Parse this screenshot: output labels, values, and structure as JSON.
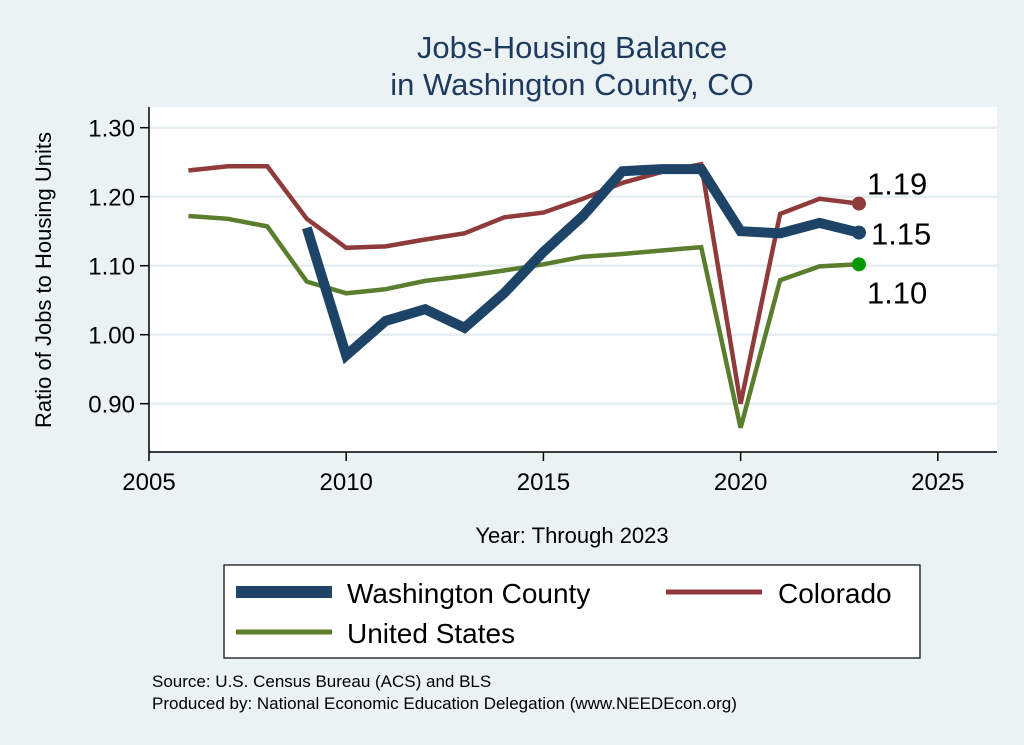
{
  "chart_data": {
    "type": "line",
    "title": [
      "Jobs-Housing Balance",
      "in Washington County, CO"
    ],
    "xlabel": "Year: Through 2023",
    "ylabel": "Ratio of Jobs to Housing Units",
    "xlim": [
      2005,
      2026.5
    ],
    "ylim": [
      0.83,
      1.33
    ],
    "xticks": [
      2005,
      2010,
      2015,
      2020,
      2025
    ],
    "yticks": [
      0.9,
      1.0,
      1.1,
      1.2,
      1.3
    ],
    "ytick_labels": [
      "0.90",
      "1.00",
      "1.10",
      "1.20",
      "1.30"
    ],
    "grid": true,
    "series": [
      {
        "name": "Washington County",
        "color": "#1d4466",
        "x": [
          2009,
          2010,
          2011,
          2012,
          2013,
          2014,
          2015,
          2016,
          2017,
          2018,
          2019,
          2020,
          2021,
          2022,
          2023
        ],
        "y": [
          1.155,
          0.97,
          1.02,
          1.037,
          1.01,
          1.06,
          1.12,
          1.172,
          1.237,
          1.24,
          1.24,
          1.15,
          1.147,
          1.162,
          1.148
        ],
        "end_label": "1.15"
      },
      {
        "name": "Colorado",
        "color": "#8f3b3c",
        "x": [
          2006,
          2007,
          2008,
          2009,
          2010,
          2011,
          2012,
          2013,
          2014,
          2015,
          2016,
          2017,
          2018,
          2019,
          2020,
          2021,
          2022,
          2023
        ],
        "y": [
          1.238,
          1.244,
          1.244,
          1.168,
          1.126,
          1.128,
          1.138,
          1.147,
          1.17,
          1.177,
          1.197,
          1.22,
          1.236,
          1.247,
          0.9,
          1.175,
          1.197,
          1.19
        ],
        "end_label": "1.19"
      },
      {
        "name": "United States",
        "color": "#5b7d2e",
        "x": [
          2006,
          2007,
          2008,
          2009,
          2010,
          2011,
          2012,
          2013,
          2014,
          2015,
          2016,
          2017,
          2018,
          2019,
          2020,
          2021,
          2022,
          2023
        ],
        "y": [
          1.172,
          1.168,
          1.157,
          1.077,
          1.06,
          1.066,
          1.078,
          1.085,
          1.093,
          1.102,
          1.113,
          1.117,
          1.122,
          1.127,
          0.865,
          1.079,
          1.099,
          1.102
        ],
        "end_label": "1.10"
      }
    ],
    "end_marker_colors": [
      "#1d4466",
      "#8f3b3c",
      "#009900"
    ],
    "legend": [
      "Washington County",
      "Colorado",
      "United States"
    ],
    "legend_position": "bottom"
  },
  "source_note": "Source: U.S. Census Bureau (ACS) and BLS",
  "producer_note": "Produced by: National Economic Education Delegation (www.NEEDEcon.org)"
}
